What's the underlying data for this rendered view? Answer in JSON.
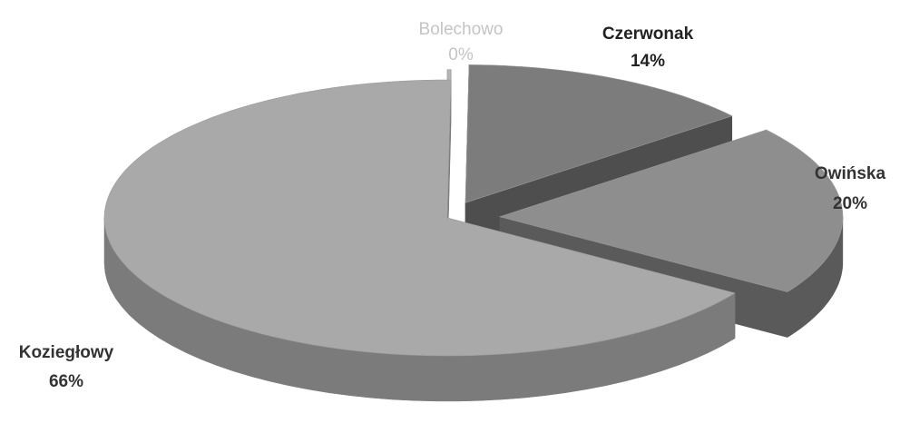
{
  "chart_data": {
    "type": "pie",
    "style": "3d-exploded",
    "legend": "none",
    "slices": [
      {
        "name": "Bolechowo",
        "value": 0,
        "label": "0%",
        "color": "#b5b5b5",
        "side_color": "#8c8c8c",
        "label_color": "#c4c4c4"
      },
      {
        "name": "Czerwonak",
        "value": 14,
        "label": "14%",
        "color": "#7c7c7c",
        "side_color": "#4e4e4e",
        "label_color": "#222222"
      },
      {
        "name": "Owińska",
        "value": 20,
        "label": "20%",
        "color": "#8e8e8e",
        "side_color": "#5a5a5a",
        "label_color": "#333333"
      },
      {
        "name": "Koziegłowy",
        "value": 66,
        "label": "66%",
        "color": "#a9a9a9",
        "side_color": "#7b7b7b",
        "label_color": "#333333"
      }
    ]
  }
}
